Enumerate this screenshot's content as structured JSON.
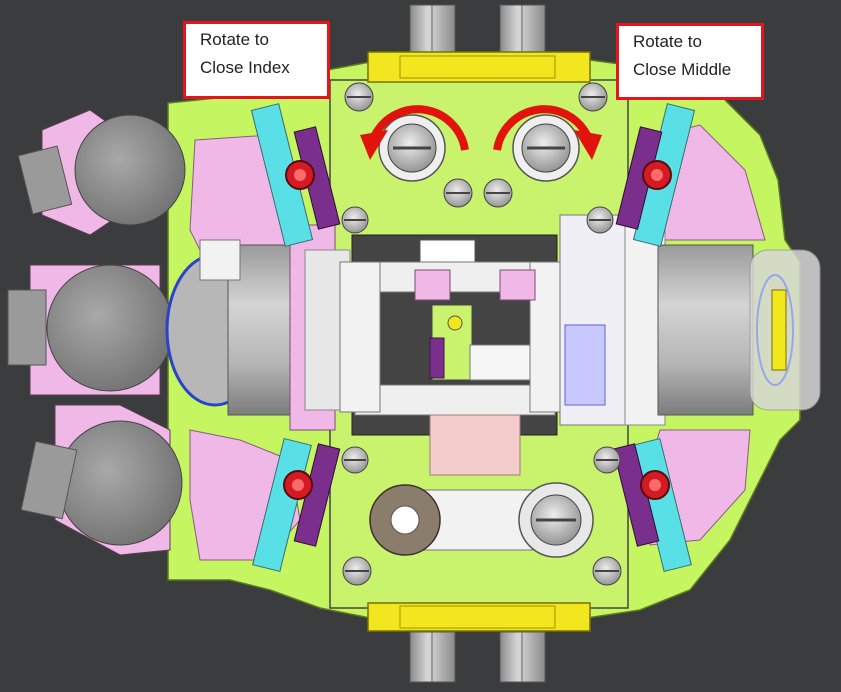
{
  "callouts": {
    "index": "Rotate to\nClose Index",
    "middle": "Rotate to\nClose Middle"
  },
  "colors": {
    "background": "#3a3c3d",
    "body": "#c6f562",
    "pink": "#f0b8e6",
    "yellow": "#f2e71e",
    "grey": "#8d8d8d",
    "red_arrow": "#e0140c",
    "callout_border": "#e8141b",
    "blue_ring": "#2a43c8",
    "cyan": "#59e0e6",
    "purple": "#7a2f8c"
  },
  "icons": [
    "rotate-ccw-arrow-icon",
    "rotate-cw-arrow-icon"
  ]
}
